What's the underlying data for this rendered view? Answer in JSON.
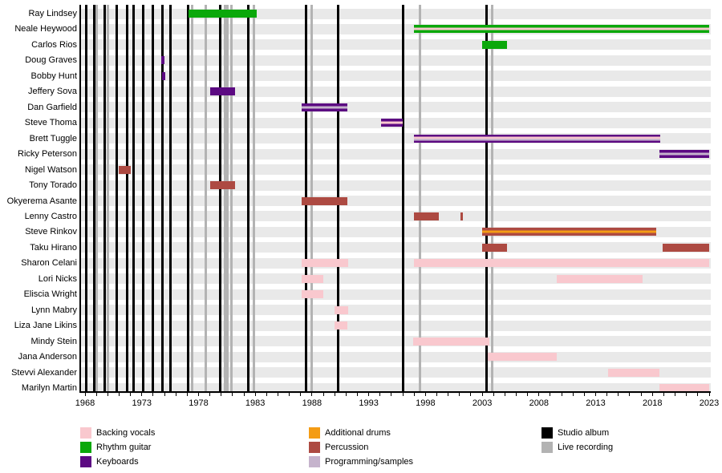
{
  "chart_data": {
    "type": "timeline",
    "description": "Band member tenure timeline (gantt-style) with album release markers",
    "x_axis": {
      "start_year": 1968,
      "end_year": 2023,
      "label_years": [
        1968,
        1973,
        1978,
        1983,
        1988,
        1993,
        1998,
        2003,
        2008,
        2013,
        2018,
        2023
      ],
      "minor_tick_every": 1
    },
    "palette": {
      "backing_vocals": "#f9c8ce",
      "rhythm_guitar": "#0aa80a",
      "keyboards": "#5c0a82",
      "additional_drums": "#f49c14",
      "percussion": "#ad4a42",
      "programming_samples": "#c5b3cc",
      "studio_album": "#000000",
      "live_recording": "#b3b3b3",
      "row_band": "#e9e9e9"
    },
    "studio_albums": [
      1968.14,
      1968.78,
      1969.7,
      1970.76,
      1971.68,
      1972.3,
      1973.1,
      1973.94,
      1974.8,
      1975.5,
      1977.1,
      1979.9,
      1982.4,
      1987.5,
      1990.3,
      1996.0,
      2003.4
    ],
    "live_recordings": [
      1969.06,
      1969.98,
      1977.47,
      1978.67,
      1980.37,
      1980.58,
      1980.87,
      1982.9,
      1988.0,
      1997.5,
      2003.85
    ],
    "members": [
      {
        "name": "Ray Lindsey",
        "bars": [
          {
            "start": 1977.1,
            "end": 1983.1,
            "roles": [
              "rhythm_guitar"
            ]
          }
        ]
      },
      {
        "name": "Neale Heywood",
        "bars": [
          {
            "start": 1997.0,
            "end": 2023.0,
            "roles": [
              "rhythm_guitar",
              "backing_vocals",
              "rhythm_guitar"
            ]
          }
        ]
      },
      {
        "name": "Carlos Rios",
        "bars": [
          {
            "start": 2003.0,
            "end": 2005.2,
            "roles": [
              "rhythm_guitar"
            ]
          }
        ]
      },
      {
        "name": "Doug Graves",
        "bars": [
          {
            "start": 1974.7,
            "end": 1975.0,
            "roles": [
              "keyboards"
            ]
          }
        ]
      },
      {
        "name": "Bobby Hunt",
        "bars": [
          {
            "start": 1974.8,
            "end": 1975.1,
            "roles": [
              "keyboards"
            ]
          }
        ]
      },
      {
        "name": "Jeffery Sova",
        "bars": [
          {
            "start": 1979.0,
            "end": 1981.2,
            "roles": [
              "keyboards"
            ]
          }
        ]
      },
      {
        "name": "Dan Garfield",
        "bars": [
          {
            "start": 1987.1,
            "end": 1991.1,
            "roles": [
              "keyboards",
              "programming_samples",
              "keyboards"
            ]
          }
        ]
      },
      {
        "name": "Steve Thoma",
        "bars": [
          {
            "start": 1994.1,
            "end": 1996.0,
            "roles": [
              "keyboards",
              "backing_vocals",
              "keyboards"
            ]
          }
        ]
      },
      {
        "name": "Brett Tuggle",
        "bars": [
          {
            "start": 1997.0,
            "end": 2018.7,
            "roles": [
              "keyboards",
              "backing_vocals",
              "programming_samples",
              "keyboards"
            ]
          }
        ]
      },
      {
        "name": "Ricky Peterson",
        "bars": [
          {
            "start": 2018.6,
            "end": 2023.0,
            "roles": [
              "keyboards",
              "programming_samples",
              "keyboards"
            ]
          }
        ]
      },
      {
        "name": "Nigel Watson",
        "bars": [
          {
            "start": 1971.0,
            "end": 1972.0,
            "roles": [
              "percussion"
            ]
          }
        ]
      },
      {
        "name": "Tony Torado",
        "bars": [
          {
            "start": 1979.0,
            "end": 1981.2,
            "roles": [
              "percussion"
            ]
          }
        ]
      },
      {
        "name": "Okyerema Asante",
        "bars": [
          {
            "start": 1987.1,
            "end": 1991.1,
            "roles": [
              "percussion"
            ]
          }
        ]
      },
      {
        "name": "Lenny Castro",
        "bars": [
          {
            "start": 1997.0,
            "end": 1999.2,
            "roles": [
              "percussion"
            ]
          },
          {
            "start": 2001.1,
            "end": 2001.3,
            "roles": [
              "percussion"
            ]
          }
        ]
      },
      {
        "name": "Steve Rinkov",
        "bars": [
          {
            "start": 2003.0,
            "end": 2018.3,
            "roles": [
              "percussion",
              "additional_drums",
              "percussion"
            ]
          }
        ]
      },
      {
        "name": "Taku Hirano",
        "bars": [
          {
            "start": 2003.0,
            "end": 2005.2,
            "roles": [
              "percussion"
            ]
          },
          {
            "start": 2018.9,
            "end": 2023.0,
            "roles": [
              "percussion"
            ]
          }
        ]
      },
      {
        "name": "Sharon Celani",
        "bars": [
          {
            "start": 1987.1,
            "end": 1991.2,
            "roles": [
              "backing_vocals"
            ]
          },
          {
            "start": 1997.0,
            "end": 2023.0,
            "roles": [
              "backing_vocals"
            ]
          }
        ]
      },
      {
        "name": "Lori Nicks",
        "bars": [
          {
            "start": 1987.1,
            "end": 1989.0,
            "roles": [
              "backing_vocals"
            ]
          },
          {
            "start": 2009.6,
            "end": 2017.1,
            "roles": [
              "backing_vocals"
            ]
          }
        ]
      },
      {
        "name": "Eliscia Wright",
        "bars": [
          {
            "start": 1987.1,
            "end": 1989.0,
            "roles": [
              "backing_vocals"
            ]
          }
        ]
      },
      {
        "name": "Lynn Mabry",
        "bars": [
          {
            "start": 1990.0,
            "end": 1991.2,
            "roles": [
              "backing_vocals"
            ]
          }
        ]
      },
      {
        "name": "Liza Jane Likins",
        "bars": [
          {
            "start": 1990.0,
            "end": 1991.1,
            "roles": [
              "backing_vocals"
            ]
          }
        ]
      },
      {
        "name": "Mindy Stein",
        "bars": [
          {
            "start": 1996.9,
            "end": 2003.6,
            "roles": [
              "backing_vocals"
            ]
          }
        ]
      },
      {
        "name": "Jana Anderson",
        "bars": [
          {
            "start": 2003.5,
            "end": 2009.6,
            "roles": [
              "backing_vocals"
            ]
          }
        ]
      },
      {
        "name": "Stevvi Alexander",
        "bars": [
          {
            "start": 2014.1,
            "end": 2018.6,
            "roles": [
              "backing_vocals"
            ]
          }
        ]
      },
      {
        "name": "Marilyn Martin",
        "bars": [
          {
            "start": 2018.6,
            "end": 2023.0,
            "roles": [
              "backing_vocals"
            ]
          }
        ]
      }
    ],
    "legend": {
      "columns": [
        [
          {
            "label": "Backing vocals",
            "role": "backing_vocals"
          },
          {
            "label": "Rhythm guitar",
            "role": "rhythm_guitar"
          },
          {
            "label": "Keyboards",
            "role": "keyboards"
          }
        ],
        [
          {
            "label": "Additional drums",
            "role": "additional_drums"
          },
          {
            "label": "Percussion",
            "role": "percussion"
          },
          {
            "label": "Programming/samples",
            "role": "programming_samples"
          }
        ],
        [
          {
            "label": "Studio album",
            "role": "studio_album"
          },
          {
            "label": "Live recording",
            "role": "live_recording"
          }
        ]
      ]
    }
  }
}
